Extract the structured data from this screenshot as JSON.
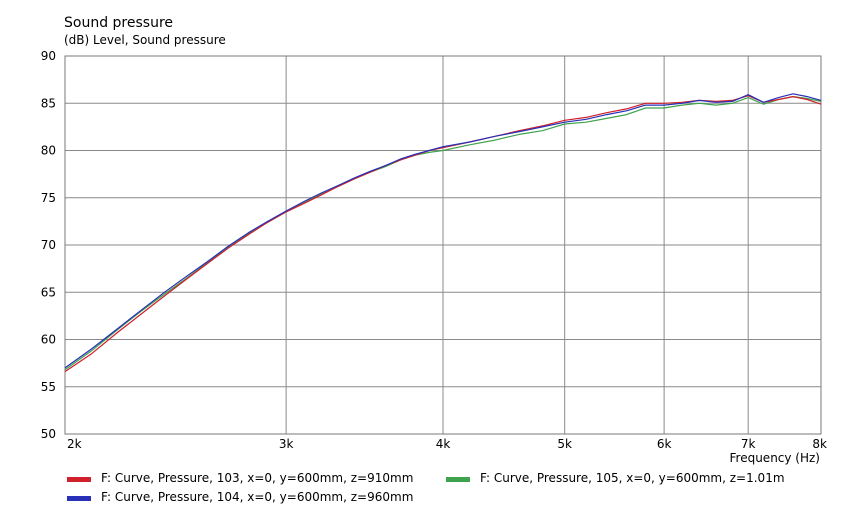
{
  "chart_data": {
    "type": "line",
    "title": "Sound pressure",
    "ylabel": "(dB)  Level, Sound pressure",
    "xlabel": "Frequency  (Hz)",
    "xscale": "log",
    "xlim": [
      2000,
      8000
    ],
    "ylim": [
      50,
      90
    ],
    "x_ticks": [
      2000,
      3000,
      4000,
      5000,
      6000,
      7000,
      8000
    ],
    "x_tick_labels": [
      "2k",
      "3k",
      "4k",
      "5k",
      "6k",
      "7k",
      "8k"
    ],
    "y_ticks": [
      50,
      55,
      60,
      65,
      70,
      75,
      80,
      85,
      90
    ],
    "y_tick_labels": [
      "50",
      "55",
      "60",
      "65",
      "70",
      "75",
      "80",
      "85",
      "90"
    ],
    "grid": true,
    "legend_position": "bottom",
    "series": [
      {
        "name": "F: Curve, Pressure, 103, x=0, y=600mm, z=910mm",
        "color": "#d0202a",
        "x": [
          2000,
          2100,
          2200,
          2300,
          2400,
          2500,
          2600,
          2700,
          2800,
          2900,
          3000,
          3100,
          3200,
          3300,
          3400,
          3500,
          3600,
          3700,
          3800,
          3900,
          4000,
          4200,
          4400,
          4600,
          4800,
          5000,
          5200,
          5400,
          5600,
          5800,
          6000,
          6200,
          6400,
          6600,
          6800,
          7000,
          7200,
          7400,
          7600,
          7800,
          8000
        ],
        "y": [
          56.6,
          58.5,
          60.7,
          62.7,
          64.6,
          66.4,
          68.1,
          69.7,
          71.1,
          72.4,
          73.5,
          74.4,
          75.3,
          76.2,
          77.0,
          77.7,
          78.4,
          79.0,
          79.5,
          80.0,
          80.3,
          80.9,
          81.5,
          82.1,
          82.6,
          83.2,
          83.5,
          84.0,
          84.4,
          85.0,
          85.0,
          85.1,
          85.3,
          85.2,
          85.3,
          85.8,
          85.1,
          85.4,
          85.7,
          85.4,
          84.9
        ]
      },
      {
        "name": "F: Curve, Pressure, 104, x=0, y=600mm, z=960mm",
        "color": "#2830b8",
        "x": [
          2000,
          2100,
          2200,
          2300,
          2400,
          2500,
          2600,
          2700,
          2800,
          2900,
          3000,
          3100,
          3200,
          3300,
          3400,
          3500,
          3600,
          3700,
          3800,
          3900,
          4000,
          4200,
          4400,
          4600,
          4800,
          5000,
          5200,
          5400,
          5600,
          5800,
          6000,
          6200,
          6400,
          6600,
          6800,
          7000,
          7200,
          7400,
          7600,
          7800,
          8000
        ],
        "y": [
          57.0,
          59.0,
          61.1,
          63.1,
          65.0,
          66.7,
          68.3,
          69.9,
          71.3,
          72.5,
          73.6,
          74.6,
          75.5,
          76.3,
          77.1,
          77.8,
          78.4,
          79.1,
          79.6,
          80.0,
          80.4,
          80.9,
          81.5,
          82.0,
          82.5,
          83.0,
          83.3,
          83.8,
          84.2,
          84.8,
          84.8,
          85.0,
          85.3,
          85.1,
          85.2,
          85.9,
          85.1,
          85.6,
          86.0,
          85.7,
          85.3
        ]
      },
      {
        "name": "F: Curve, Pressure, 105, x=0, y=600mm, z=1.01m",
        "color": "#3fa34d",
        "x": [
          2000,
          2100,
          2200,
          2300,
          2400,
          2500,
          2600,
          2700,
          2800,
          2900,
          3000,
          3100,
          3200,
          3300,
          3400,
          3500,
          3600,
          3700,
          3800,
          3900,
          4000,
          4200,
          4400,
          4600,
          4800,
          5000,
          5200,
          5400,
          5600,
          5800,
          6000,
          6200,
          6400,
          6600,
          6800,
          7000,
          7200,
          7400,
          7600,
          7800,
          8000
        ],
        "y": [
          56.8,
          58.8,
          61.0,
          63.0,
          64.8,
          66.5,
          68.2,
          69.8,
          71.2,
          72.4,
          73.5,
          74.5,
          75.4,
          76.2,
          77.0,
          77.7,
          78.3,
          79.0,
          79.5,
          79.8,
          80.0,
          80.6,
          81.1,
          81.7,
          82.1,
          82.8,
          83.0,
          83.4,
          83.8,
          84.5,
          84.5,
          84.8,
          85.0,
          84.8,
          85.0,
          85.6,
          84.9,
          85.4,
          85.7,
          85.5,
          85.2
        ]
      }
    ]
  }
}
